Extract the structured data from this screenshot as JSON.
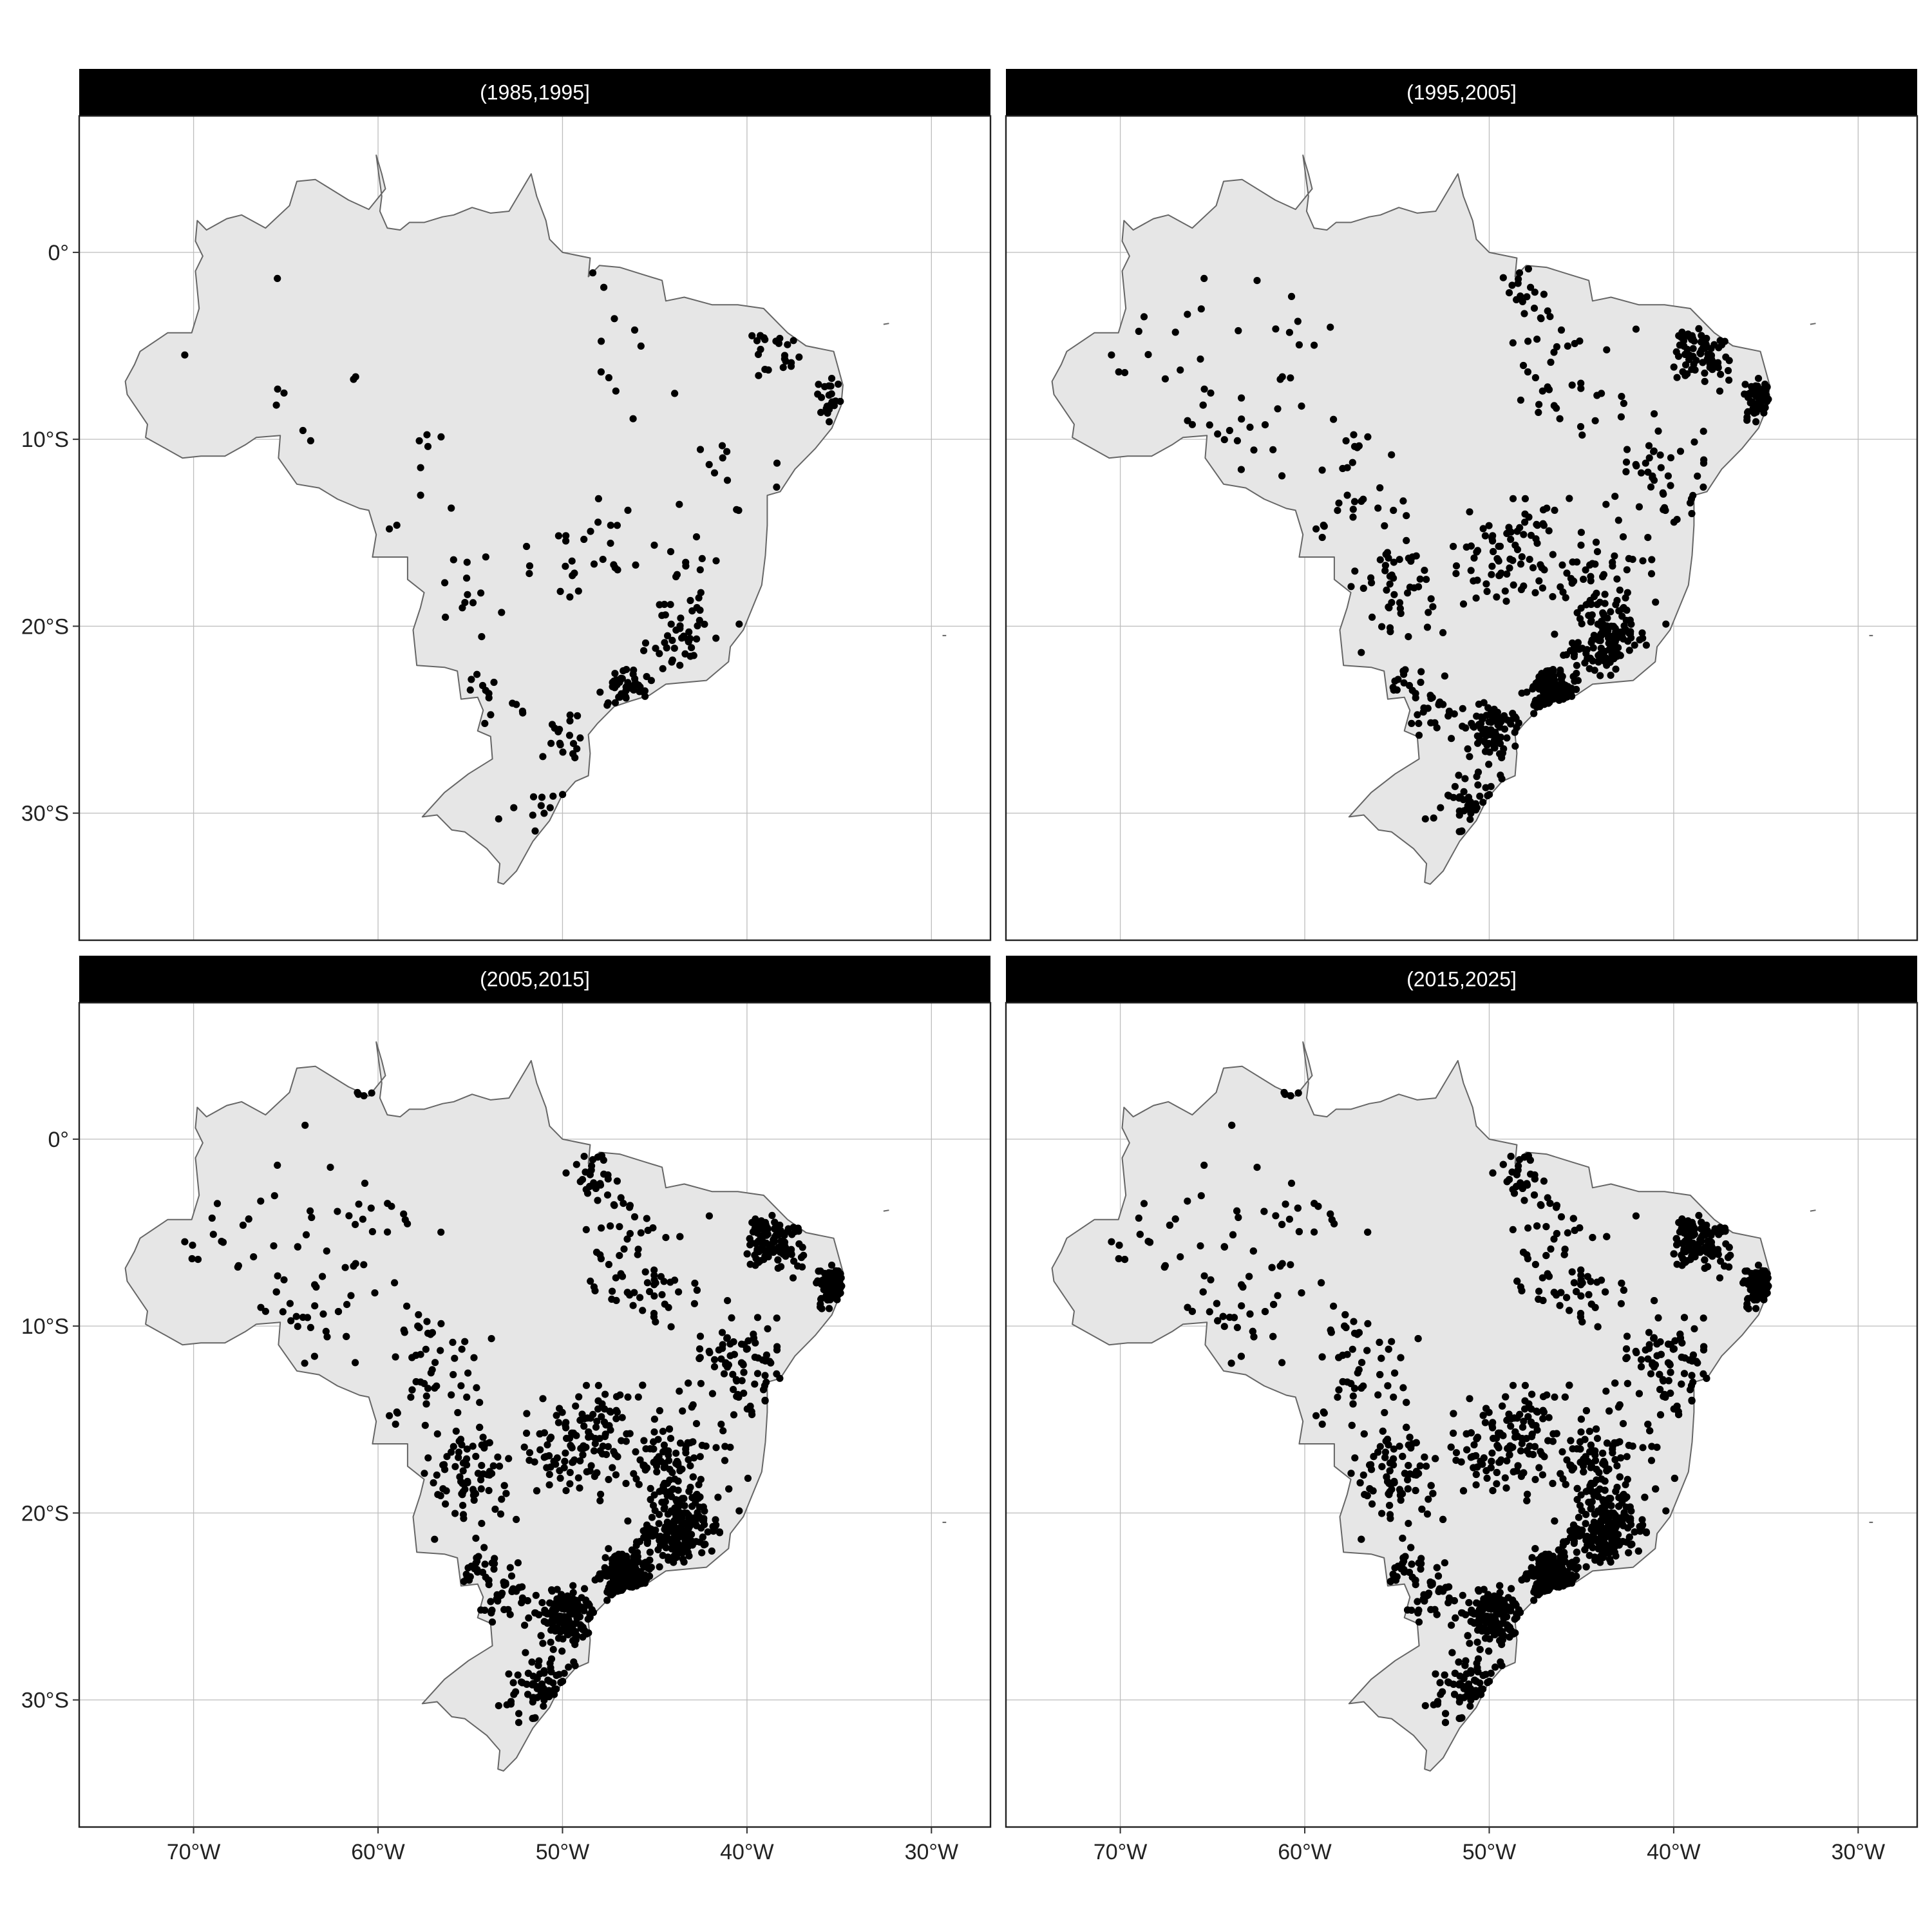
{
  "figure": {
    "kind": "faceted point map",
    "x_range": [
      -76.2,
      -26.8
    ],
    "y_range": [
      -36.8,
      7.3
    ],
    "x_ticks": [
      {
        "value": -70,
        "label": "70°W"
      },
      {
        "value": -60,
        "label": "60°W"
      },
      {
        "value": -50,
        "label": "50°W"
      },
      {
        "value": -40,
        "label": "40°W"
      },
      {
        "value": -30,
        "label": "30°W"
      }
    ],
    "y_ticks": [
      {
        "value": 0,
        "label": "0°"
      },
      {
        "value": -10,
        "label": "10°S"
      },
      {
        "value": -20,
        "label": "20°S"
      },
      {
        "value": -30,
        "label": "30°S"
      }
    ],
    "grid": true,
    "colors": {
      "land_fill": "#e6e6e6",
      "land_outline": "#666666",
      "points": "#000000",
      "strip": "#000000",
      "strip_text": "#ffffff",
      "grid": "#bdbdbd"
    },
    "panels": [
      {
        "label": "(1985,1995]",
        "density": 0.32
      },
      {
        "label": "(1995,2005]",
        "density": 0.6
      },
      {
        "label": "(2005,2015]",
        "density": 0.8
      },
      {
        "label": "(2015,2025]",
        "density": 1.0
      }
    ]
  }
}
